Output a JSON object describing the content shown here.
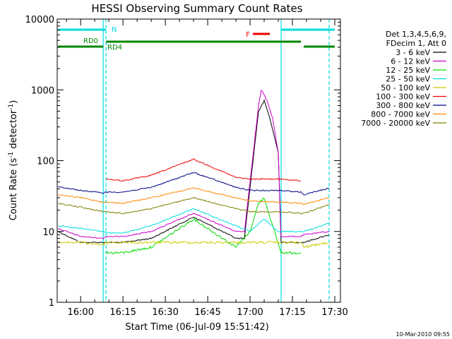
{
  "chart_data": {
    "type": "line",
    "title": "HESSI Observing Summary Count Rates",
    "xlabel": "Start Time (06-Jul-09 15:51:42)",
    "ylabel_parts": [
      "Count Rate (s",
      "-1",
      " detector",
      "-1",
      ")"
    ],
    "yscale": "log",
    "ylim": [
      1,
      10000
    ],
    "y_ticks": [
      {
        "value": 1,
        "label": "1"
      },
      {
        "value": 10,
        "label": "10"
      },
      {
        "value": 100,
        "label": "100"
      },
      {
        "value": 1000,
        "label": "1000"
      },
      {
        "value": 10000,
        "label": "10000"
      }
    ],
    "xlim": [
      "15:51:42",
      "17:32:00"
    ],
    "x_ticks": [
      {
        "value": "16:00",
        "label": "16:00"
      },
      {
        "value": "16:15",
        "label": "16:15"
      },
      {
        "value": "16:30",
        "label": "16:30"
      },
      {
        "value": "16:45",
        "label": "16:45"
      },
      {
        "value": "17:00",
        "label": "17:00"
      },
      {
        "value": "17:15",
        "label": "17:15"
      },
      {
        "value": "17:30",
        "label": "17:30"
      }
    ],
    "legend_header": [
      "Det 1,3,4,5,6,9,",
      "FDecim 1, Att 0"
    ],
    "series": [
      {
        "name": "3 - 6 keV",
        "color": "#000000",
        "points": [
          [
            "15:52",
            10
          ],
          [
            "16:00",
            7
          ],
          [
            "16:08",
            7
          ],
          [
            "16:09",
            7
          ],
          [
            "16:15",
            7
          ],
          [
            "16:25",
            8
          ],
          [
            "16:40",
            16
          ],
          [
            "16:55",
            8
          ],
          [
            "16:58",
            8
          ],
          [
            "17:03",
            500
          ],
          [
            "17:05",
            700
          ],
          [
            "17:07",
            400
          ],
          [
            "17:10",
            130
          ],
          [
            "17:11",
            7
          ],
          [
            "17:18",
            7
          ],
          [
            "17:19",
            7
          ],
          [
            "17:28",
            9
          ]
        ]
      },
      {
        "name": "6 - 12 keV",
        "color": "#cc00cc",
        "points": [
          [
            "15:52",
            11
          ],
          [
            "16:00",
            8.5
          ],
          [
            "16:08",
            8
          ],
          [
            "16:09",
            8.5
          ],
          [
            "16:15",
            8.5
          ],
          [
            "16:25",
            10
          ],
          [
            "16:40",
            18
          ],
          [
            "16:55",
            10
          ],
          [
            "16:58",
            10
          ],
          [
            "17:03",
            600
          ],
          [
            "17:04",
            1000
          ],
          [
            "17:06",
            700
          ],
          [
            "17:08",
            400
          ],
          [
            "17:10",
            130
          ],
          [
            "17:11",
            8.5
          ],
          [
            "17:18",
            8.5
          ],
          [
            "17:19",
            9
          ],
          [
            "17:28",
            10
          ]
        ]
      },
      {
        "name": "12 - 25 keV",
        "color": "#00dd00",
        "points": [
          [
            "16:09",
            5
          ],
          [
            "16:15",
            5
          ],
          [
            "16:25",
            6
          ],
          [
            "16:40",
            15
          ],
          [
            "16:55",
            6
          ],
          [
            "17:00",
            10
          ],
          [
            "17:03",
            25
          ],
          [
            "17:05",
            30
          ],
          [
            "17:08",
            12
          ],
          [
            "17:11",
            5
          ],
          [
            "17:18",
            5
          ]
        ]
      },
      {
        "name": "25 - 50 keV",
        "color": "#00dddd",
        "points": [
          [
            "15:52",
            12
          ],
          [
            "16:00",
            11
          ],
          [
            "16:08",
            10
          ],
          [
            "16:09",
            9.5
          ],
          [
            "16:15",
            9.5
          ],
          [
            "16:25",
            12
          ],
          [
            "16:40",
            21
          ],
          [
            "16:55",
            12
          ],
          [
            "17:00",
            10
          ],
          [
            "17:05",
            15
          ],
          [
            "17:10",
            10
          ],
          [
            "17:11",
            10
          ],
          [
            "17:18",
            10
          ],
          [
            "17:19",
            10
          ],
          [
            "17:28",
            13
          ]
        ]
      },
      {
        "name": "50 - 100 keV",
        "color": "#cccc00",
        "points": [
          [
            "15:52",
            7
          ],
          [
            "16:00",
            7
          ],
          [
            "16:08",
            6.5
          ],
          [
            "16:09",
            7
          ],
          [
            "17:18",
            7
          ],
          [
            "17:19",
            6
          ],
          [
            "17:28",
            7
          ]
        ]
      },
      {
        "name": "100 - 300 keV",
        "color": "#ee0000",
        "points": [
          [
            "16:09",
            55
          ],
          [
            "16:15",
            52
          ],
          [
            "16:25",
            62
          ],
          [
            "16:40",
            105
          ],
          [
            "16:55",
            58
          ],
          [
            "17:00",
            55
          ],
          [
            "17:10",
            55
          ],
          [
            "17:11",
            55
          ],
          [
            "17:18",
            52
          ]
        ]
      },
      {
        "name": "300 - 800 keV",
        "color": "#000088",
        "points": [
          [
            "15:52",
            43
          ],
          [
            "16:00",
            38
          ],
          [
            "16:08",
            35
          ],
          [
            "16:09",
            36
          ],
          [
            "16:15",
            36
          ],
          [
            "16:25",
            42
          ],
          [
            "16:40",
            68
          ],
          [
            "16:55",
            42
          ],
          [
            "17:00",
            38
          ],
          [
            "17:10",
            38
          ],
          [
            "17:11",
            38
          ],
          [
            "17:18",
            36
          ],
          [
            "17:19",
            33
          ],
          [
            "17:28",
            41
          ]
        ]
      },
      {
        "name": "800 - 7000 keV",
        "color": "#ff8800",
        "points": [
          [
            "15:52",
            33
          ],
          [
            "16:00",
            30
          ],
          [
            "16:08",
            26
          ],
          [
            "16:09",
            26
          ],
          [
            "16:15",
            25
          ],
          [
            "16:25",
            30
          ],
          [
            "16:40",
            41
          ],
          [
            "16:55",
            30
          ],
          [
            "17:00",
            27
          ],
          [
            "17:10",
            26
          ],
          [
            "17:11",
            26
          ],
          [
            "17:18",
            25
          ],
          [
            "17:19",
            24
          ],
          [
            "17:28",
            30
          ]
        ]
      },
      {
        "name": "7000 - 20000 keV",
        "color": "#808000",
        "points": [
          [
            "15:52",
            25
          ],
          [
            "16:00",
            22
          ],
          [
            "16:08",
            19
          ],
          [
            "16:09",
            19
          ],
          [
            "16:15",
            18
          ],
          [
            "16:25",
            21
          ],
          [
            "16:40",
            30
          ],
          [
            "16:55",
            21
          ],
          [
            "17:00",
            19
          ],
          [
            "17:10",
            19
          ],
          [
            "17:11",
            19
          ],
          [
            "17:18",
            18
          ],
          [
            "17:19",
            18
          ],
          [
            "17:28",
            24
          ]
        ]
      }
    ],
    "state_bars": [
      {
        "name": "N",
        "color": "#00dddd",
        "segments": [
          [
            "15:52",
            "16:09"
          ],
          [
            "17:11",
            "17:30"
          ]
        ]
      },
      {
        "name": "F",
        "color": "#ee0000",
        "segments": [
          [
            "17:01",
            "17:07"
          ]
        ]
      },
      {
        "name": "RD0",
        "color": "#008800",
        "segments": [
          [
            "16:09",
            "17:18"
          ]
        ]
      },
      {
        "name": "RD4",
        "color": "#008800",
        "segments": [
          [
            "15:52",
            "16:08"
          ],
          [
            "17:19",
            "17:30"
          ]
        ]
      }
    ],
    "vertical_markers": [
      {
        "color": "#00dddd",
        "style": "solid",
        "x": "16:08"
      },
      {
        "color": "#00dddd",
        "style": "dashed",
        "x": "16:09"
      },
      {
        "color": "#00dddd",
        "style": "solid",
        "x": "17:11"
      },
      {
        "color": "#00dddd",
        "style": "dashed",
        "x": "17:28"
      }
    ],
    "footer": "10-Mar-2010 09:55"
  }
}
